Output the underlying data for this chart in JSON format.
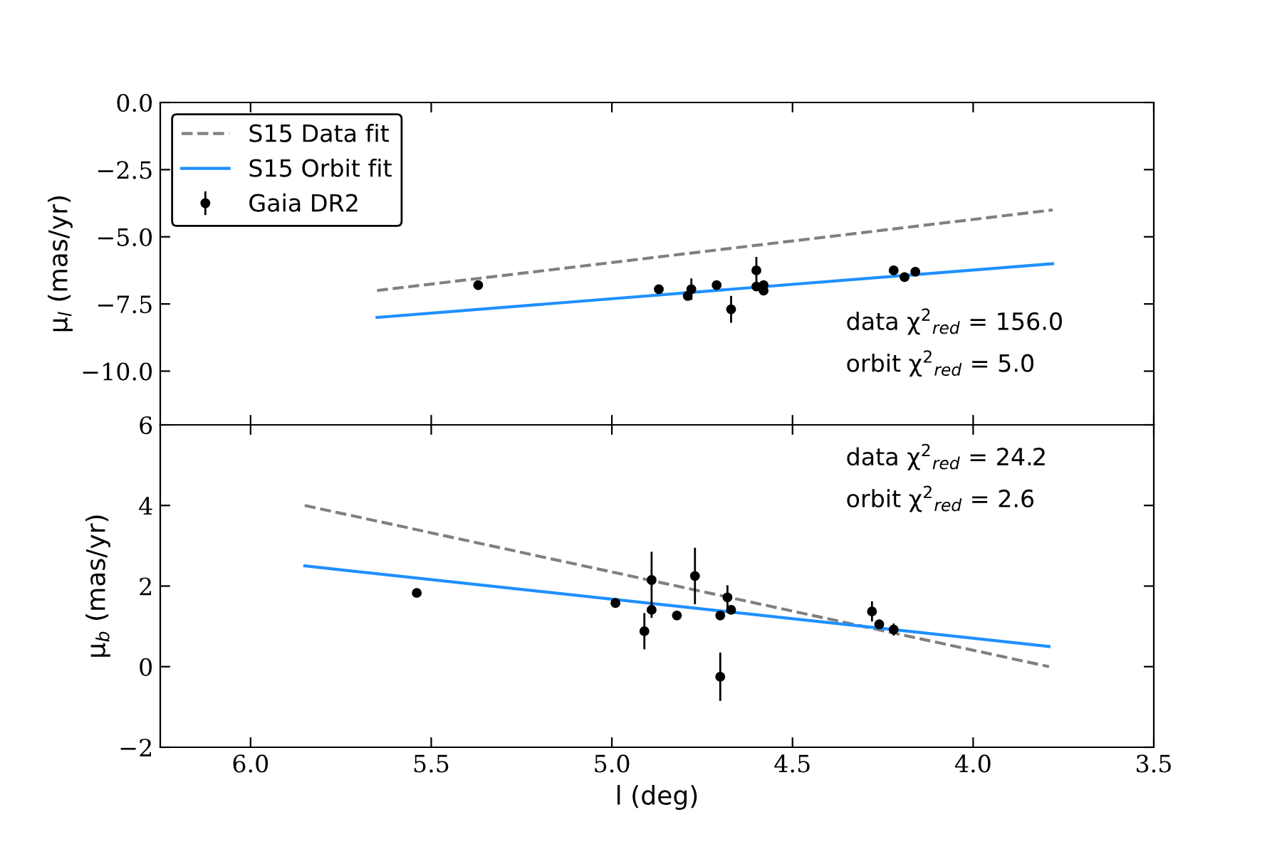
{
  "chart_data": [
    {
      "type": "line",
      "ylabel": "μ$_{l}$ (mas/yr)",
      "xlim": [
        6.25,
        3.5
      ],
      "ylim": [
        -12,
        0
      ],
      "xticks": [
        6.0,
        5.5,
        5.0,
        4.5,
        4.0,
        3.5
      ],
      "yticks": [
        {
          "value": -10,
          "label": "−10.0"
        },
        {
          "value": -7.5,
          "label": "−7.5"
        },
        {
          "value": -5,
          "label": "−5.0"
        },
        {
          "value": -2.5,
          "label": "−2.5"
        },
        {
          "value": 0,
          "label": "0.0"
        }
      ],
      "tick_labels": "y",
      "legend": "top left",
      "annotations": [
        "data χ$^{2}$$_{red}$ = 156.0",
        "orbit χ$^{2}$$_{red}$ = 5.0"
      ],
      "series": [
        {
          "name": "S15 Data fit",
          "line_style": "dashed",
          "color": "#808080",
          "x": [
            5.65,
            3.78
          ],
          "values": [
            -7.0,
            -4.0
          ]
        },
        {
          "name": "S15 Orbit fit",
          "line_style": "solid",
          "color": "#1e90ff",
          "x": [
            5.65,
            3.78
          ],
          "values": [
            -8.0,
            -6.0
          ]
        },
        {
          "name": "Gaia DR2",
          "type": "scatter",
          "marker": "circle",
          "color": "#000000",
          "x": [
            5.37,
            4.87,
            4.79,
            4.78,
            4.71,
            4.67,
            4.6,
            4.6,
            4.58,
            4.58,
            4.22,
            4.19,
            4.16
          ],
          "values": [
            -6.8,
            -6.95,
            -7.2,
            -6.95,
            -6.8,
            -7.7,
            -6.25,
            -6.85,
            -6.8,
            -7.0,
            -6.25,
            -6.5,
            -6.3
          ],
          "errors": [
            0.1,
            0.1,
            0.1,
            0.4,
            0.1,
            0.5,
            0.5,
            0.1,
            0.1,
            0.1,
            0.1,
            0.1,
            0.1
          ]
        }
      ]
    },
    {
      "type": "line",
      "xlabel": "l (deg)",
      "ylabel": "μ$_{b}$ (mas/yr)",
      "xlim": [
        6.25,
        3.5
      ],
      "ylim": [
        -2,
        6
      ],
      "xticks": [
        {
          "value": 6.0,
          "label": "6.0"
        },
        {
          "value": 5.5,
          "label": "5.5"
        },
        {
          "value": 5.0,
          "label": "5.0"
        },
        {
          "value": 4.5,
          "label": "4.5"
        },
        {
          "value": 4.0,
          "label": "4.0"
        },
        {
          "value": 3.5,
          "label": "3.5"
        }
      ],
      "yticks": [
        {
          "value": -2,
          "label": "−2"
        },
        0,
        2,
        4,
        6
      ],
      "annotations": [
        "data χ$^{2}$$_{red}$ = 24.2",
        "orbit χ$^{2}$$_{red}$ = 2.6"
      ],
      "series": [
        {
          "line_style": "dashed",
          "color": "#808080",
          "x": [
            5.85,
            3.79
          ],
          "values": [
            4.0,
            0.0
          ]
        },
        {
          "line_style": "solid",
          "color": "#1e90ff",
          "x": [
            5.85,
            3.79
          ],
          "values": [
            2.5,
            0.5
          ]
        },
        {
          "type": "scatter",
          "marker": "circle",
          "color": "#000000",
          "x": [
            5.54,
            4.99,
            4.91,
            4.89,
            4.89,
            4.82,
            4.77,
            4.7,
            4.7,
            4.68,
            4.67,
            4.28,
            4.26,
            4.22
          ],
          "values": [
            1.83,
            1.58,
            0.88,
            2.15,
            1.41,
            1.27,
            2.25,
            -0.25,
            1.27,
            1.72,
            1.41,
            1.37,
            1.05,
            0.92
          ],
          "errors": [
            0.05,
            0.1,
            0.45,
            0.7,
            0.2,
            0.1,
            0.7,
            0.6,
            0.1,
            0.3,
            0.1,
            0.25,
            0.1,
            0.15
          ]
        }
      ]
    }
  ]
}
